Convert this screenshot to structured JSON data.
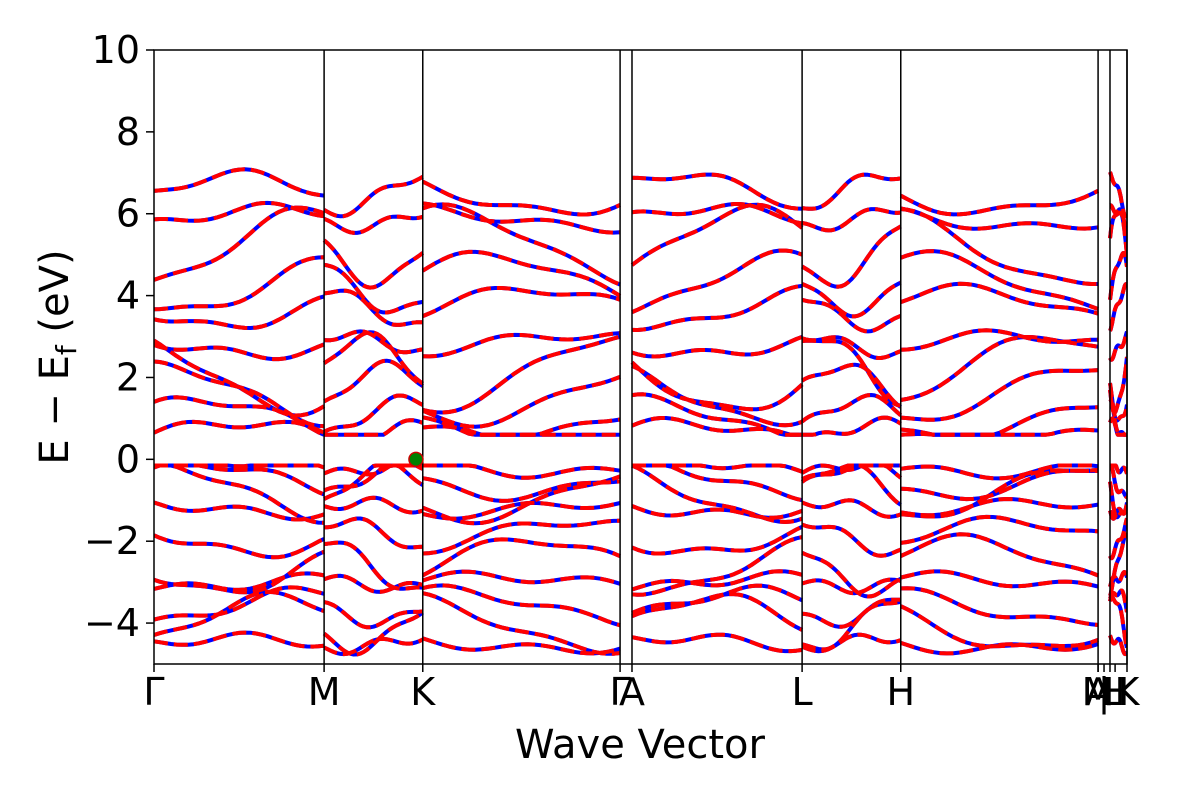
{
  "chart_data": {
    "type": "line",
    "title": "",
    "xlabel": "Wave Vector",
    "ylabel_main": "E − E",
    "ylabel_sub": "f",
    "ylabel_unit": " (eV)",
    "ylim": [
      -5,
      10
    ],
    "yticks": [
      {
        "value": -4,
        "label": "−4"
      },
      {
        "value": -2,
        "label": "−2"
      },
      {
        "value": 0,
        "label": "0"
      },
      {
        "value": 2,
        "label": "2"
      },
      {
        "value": 4,
        "label": "4"
      },
      {
        "value": 6,
        "label": "6"
      },
      {
        "value": 8,
        "label": "8"
      },
      {
        "value": 10,
        "label": "10"
      }
    ],
    "xlim": [
      0,
      5.72
    ],
    "kpoints": [
      {
        "label": "Γ",
        "x": 0.0
      },
      {
        "label": "M",
        "x": 1.0
      },
      {
        "label": "K",
        "x": 1.58
      },
      {
        "label": "Γ",
        "x": 2.74
      },
      {
        "label": "A",
        "x": 2.81
      },
      {
        "label": "L",
        "x": 3.81
      },
      {
        "label": "H",
        "x": 4.39
      },
      {
        "label": "A",
        "x": 5.55
      },
      {
        "label": "L",
        "x": 5.62
      },
      {
        "label": "M",
        "x": 5.55
      },
      {
        "label": "|",
        "x": 5.585
      },
      {
        "label": "H",
        "x": 5.65
      },
      {
        "label": "K",
        "x": 5.72
      }
    ],
    "vertical_lines": [
      1.0,
      1.58,
      2.74,
      2.81,
      3.81,
      4.39,
      5.55,
      5.62,
      5.72
    ],
    "series": [
      {
        "color": "#0000ff",
        "style": "solid"
      },
      {
        "color": "#ff0000",
        "style": "dashed"
      }
    ],
    "marker": {
      "x": 1.54,
      "y": 0.0,
      "color": "#008000",
      "edge": "#cc0000"
    },
    "bands": {
      "valence_centers": [
        -0.2,
        -0.5,
        -0.8,
        -1.2,
        -1.9,
        -2.6,
        -3.0,
        -3.6,
        -4.0,
        -4.5
      ],
      "conduction_centers": [
        0.65,
        1.0,
        1.6,
        2.1,
        2.8,
        3.7,
        4.3,
        5.2,
        5.9,
        6.5
      ]
    }
  }
}
